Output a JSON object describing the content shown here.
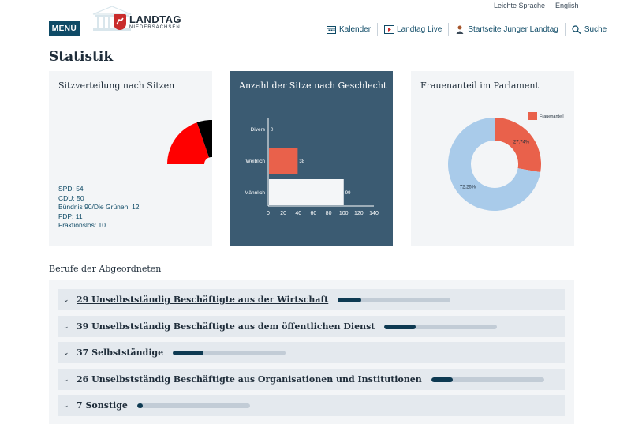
{
  "header": {
    "menu_label": "MENÜ",
    "logo_title": "LANDTAG",
    "logo_subtitle": "NIEDERSACHSEN",
    "links_top": [
      "Leichte Sprache",
      "English"
    ],
    "nav": [
      {
        "label": "Kalender",
        "icon": "calendar-icon"
      },
      {
        "label": "Landtag Live",
        "icon": "video-icon"
      },
      {
        "label": "Startseite Junger Landtag",
        "icon": "person-icon"
      },
      {
        "label": "Suche",
        "icon": "search-icon"
      }
    ]
  },
  "page_title": "Statistik",
  "cards": {
    "seats": {
      "title": "Sitzverteilung nach Sitzen",
      "legend": [
        "SPD: 54",
        "CDU: 50",
        "Bündnis 90/Die Grünen: 12",
        "FDP: 11",
        "Fraktionslos: 10"
      ]
    },
    "gender": {
      "title": "Anzahl der Sitze nach Geschlecht"
    },
    "women": {
      "title": "Frauenanteil im Parlament"
    }
  },
  "colors": {
    "spd": "#ff0000",
    "cdu": "#000000",
    "gruene": "#64a12d",
    "fdp": "#ffed00",
    "fraktionslos": "#9ea9b3",
    "accent": "#0e4a66",
    "bar_female": "#e9614b",
    "pie_other": "#a9cbea"
  },
  "chart_data": [
    {
      "type": "pie",
      "title": "Sitzverteilung nach Sitzen",
      "categories": [
        "SPD",
        "CDU",
        "Bündnis 90/Die Grünen",
        "FDP",
        "Fraktionslos"
      ],
      "values": [
        54,
        50,
        12,
        11,
        10
      ],
      "variant": "semicircle"
    },
    {
      "type": "bar",
      "orientation": "horizontal",
      "title": "Anzahl der Sitze nach Geschlecht",
      "categories": [
        "Divers",
        "Weiblich",
        "Männlich"
      ],
      "values": [
        0,
        38,
        99
      ],
      "xlim": [
        0,
        140
      ],
      "xticks": [
        0,
        20,
        40,
        60,
        80,
        100,
        120,
        140
      ]
    },
    {
      "type": "pie",
      "title": "Frauenanteil im Parlament",
      "variant": "donut",
      "legend": [
        "Frauenanteil"
      ],
      "values": [
        27.74,
        72.26
      ],
      "labels": [
        "27.74%",
        "72.26%"
      ]
    }
  ],
  "professions": {
    "heading": "Berufe der Abgeordneten",
    "items": [
      {
        "label": "29 Unselbstständig Beschäftigte aus der Wirtschaft",
        "share": 0.21,
        "underlined": true
      },
      {
        "label": "39 Unselbstständig Beschäftigte aus dem öffentlichen Dienst",
        "share": 0.28
      },
      {
        "label": "37 Selbstständige",
        "share": 0.27
      },
      {
        "label": "26 Unselbstständig Beschäftigte aus Organisationen und Institutionen",
        "share": 0.19
      },
      {
        "label": "7 Sonstige",
        "share": 0.05
      }
    ]
  }
}
